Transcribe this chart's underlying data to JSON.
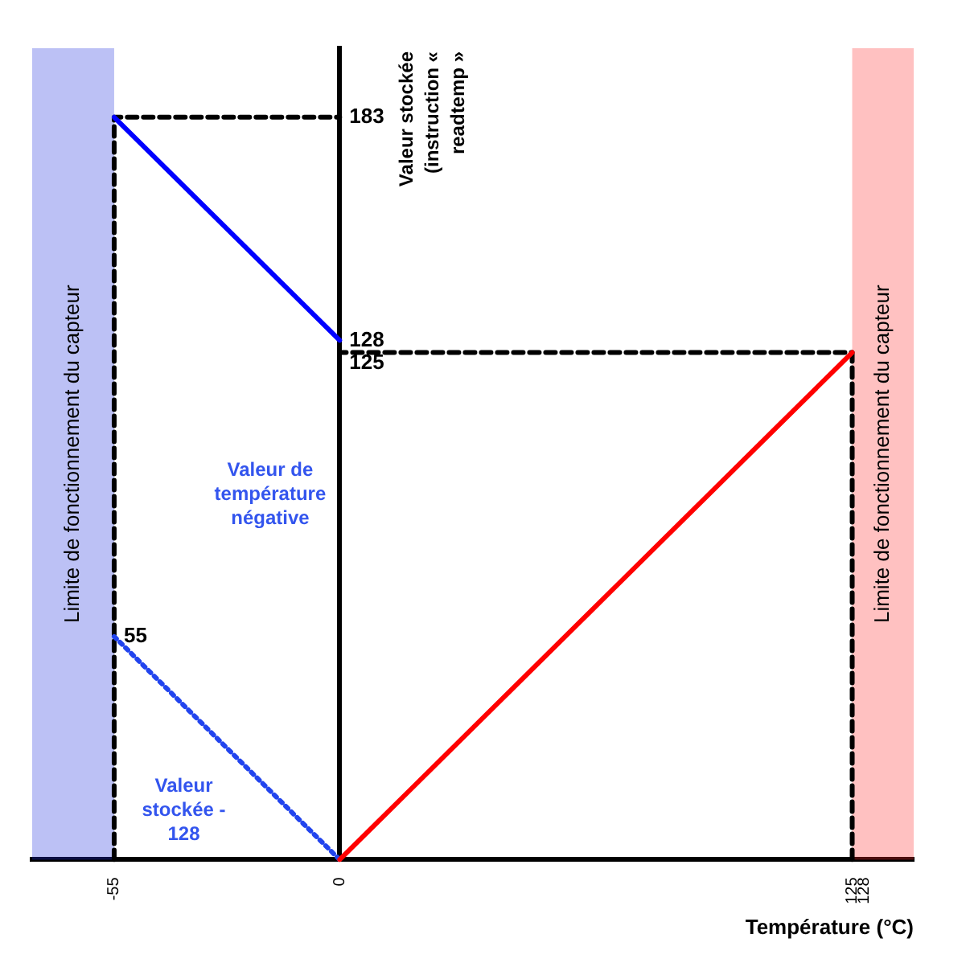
{
  "chart_data": {
    "type": "line",
    "xlabel": "Température (°C)",
    "ylabel": "Valeur stockée (instruction « readtemp »",
    "xlim": [
      -75,
      140
    ],
    "xticks": [
      -55,
      0,
      125,
      128
    ],
    "tick_labels": "x",
    "legend": false,
    "line_style": "solid",
    "series": [
      {
        "color": "#0000ff",
        "x": [
          -55,
          0
        ],
        "values": [
          183,
          128
        ],
        "value_labels": [
          null,
          "128"
        ]
      },
      {
        "color": "#ff0000",
        "x": [
          0,
          125
        ],
        "values": [
          0,
          125
        ]
      },
      {
        "color": "#2244ee",
        "x": [
          -55,
          0
        ],
        "values": [
          55,
          0
        ],
        "line_style": "dotted",
        "value_labels": [
          "55",
          null
        ]
      },
      {
        "color": "#000000",
        "x": [
          -55,
          -55,
          0
        ],
        "values": [
          0,
          183,
          183
        ],
        "line_style": "dashed",
        "value_labels": [
          null,
          null,
          "183"
        ]
      },
      {
        "color": "#000000",
        "x": [
          125,
          125,
          0
        ],
        "values": [
          0,
          125,
          125
        ],
        "line_style": "dashed",
        "value_labels": [
          null,
          null,
          "125"
        ]
      }
    ],
    "bands": [
      {
        "axis": "x",
        "from": -75,
        "to": -55,
        "label": "Limite de fonctionnement du capteur",
        "color": "#2233dd"
      },
      {
        "axis": "x",
        "from": 125,
        "to": 140,
        "label": "Limite de fonctionnement du capteur",
        "color": "#ff3333"
      }
    ],
    "annotations": [
      "Valeur de température négative",
      "Valeur stockée - 128"
    ]
  }
}
